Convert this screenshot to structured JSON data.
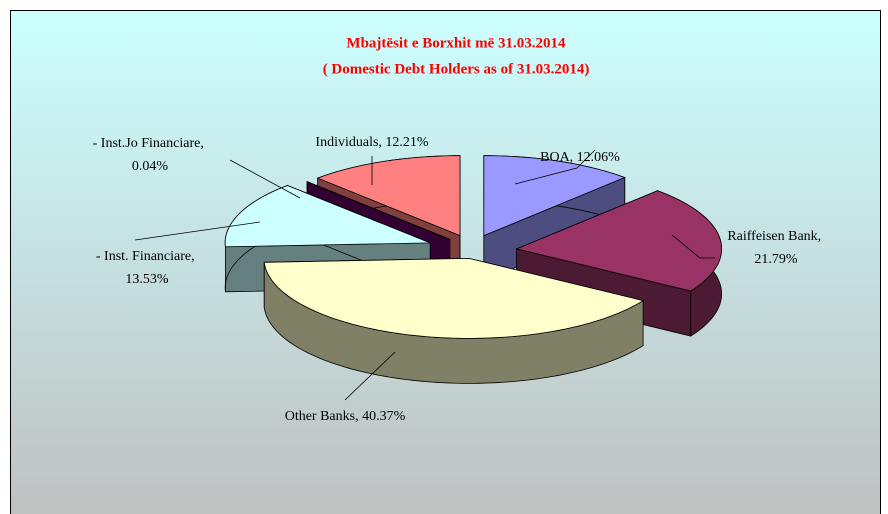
{
  "chart_data": {
    "type": "pie3d",
    "title": "Mbajtësit e Borxhit më 31.03.2014",
    "subtitle": "( Domestic Debt Holders as of  31.03.2014)",
    "values": [
      12.06,
      21.79,
      40.37,
      13.53,
      0.04,
      12.21
    ],
    "value_labels": [
      "BOA, 12.06%",
      "Raiffeisen Bank, 21.79%",
      "Other Banks, 40.37%",
      "- Inst. Financiare, 13.53%",
      "- Inst.Jo Financiare, 0.04%",
      "Individuals, 12.21%"
    ],
    "colors": [
      "#9999ff",
      "#993366",
      "#ffffcc",
      "#ccffff",
      "#660066",
      "#ff8080"
    ]
  }
}
